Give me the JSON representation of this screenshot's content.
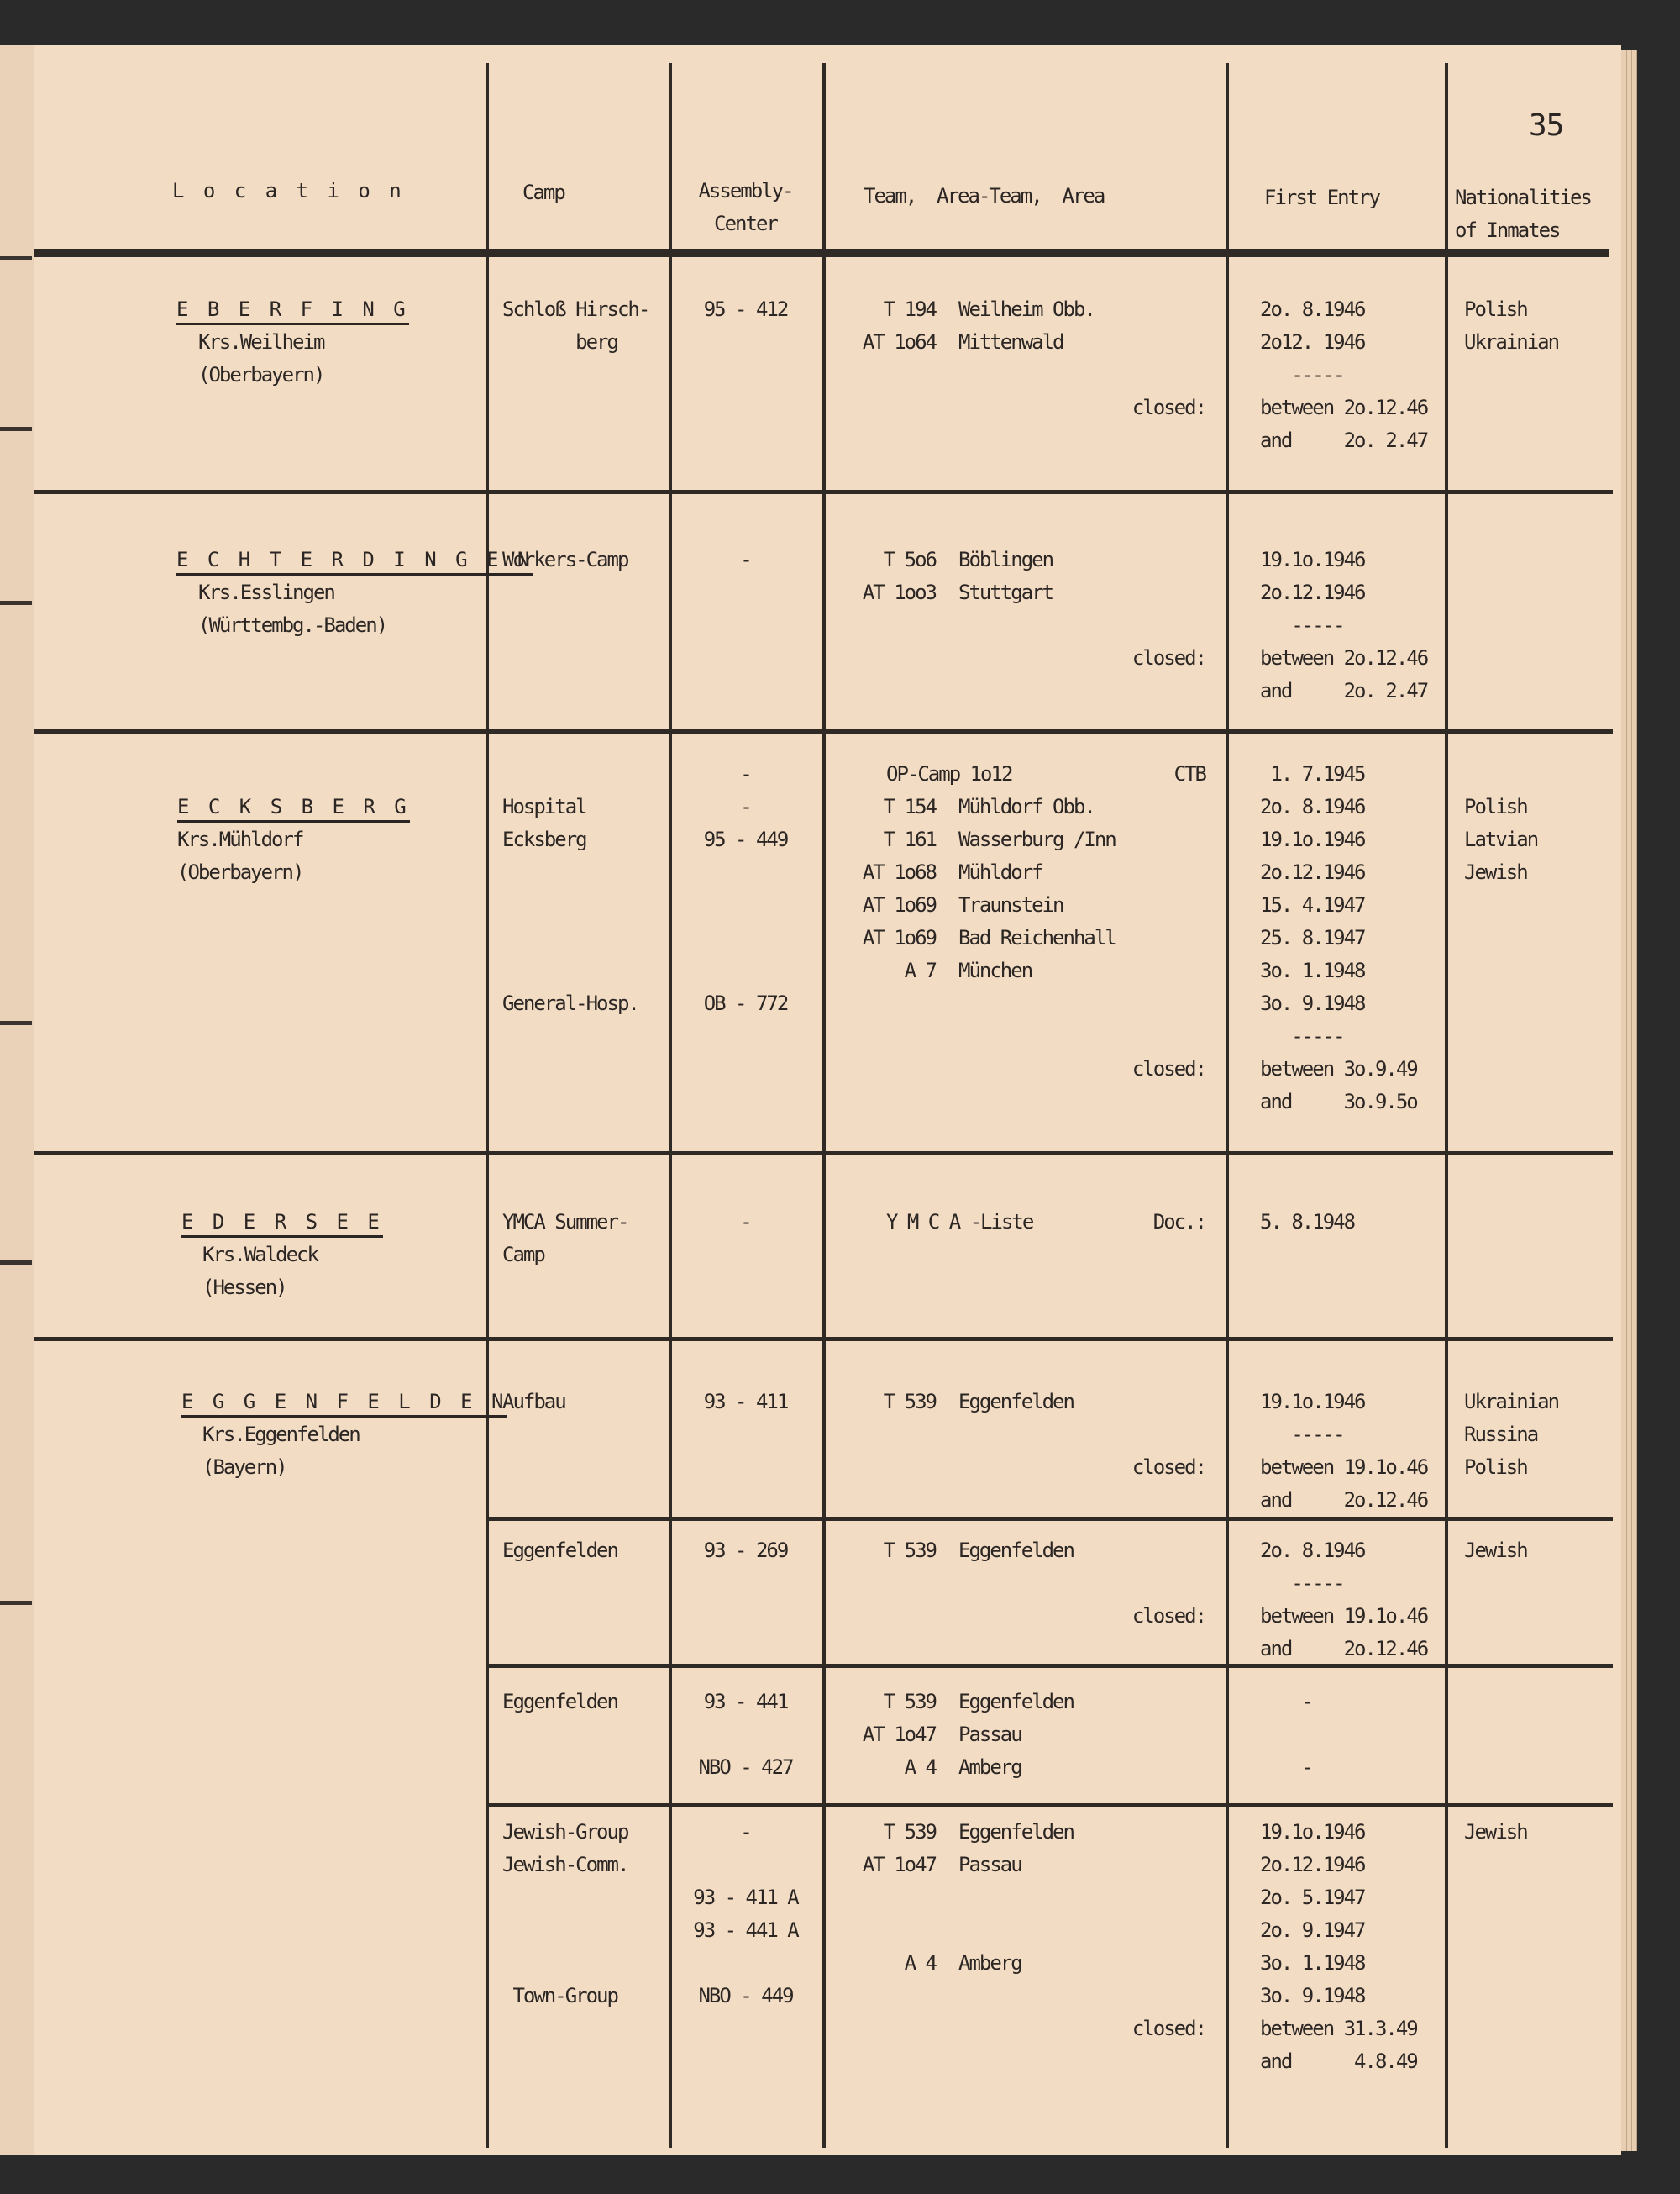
{
  "page_number": "35",
  "header": {
    "location": "L o c a t i o n",
    "camp": "Camp",
    "assembly": [
      "Assembly-",
      "Center"
    ],
    "team": "Team,  Area-Team,  Area",
    "first_entry": "First Entry",
    "nationalities": [
      "Nationalities",
      "of Inmates"
    ]
  },
  "rows": [
    {
      "location": {
        "name": "E B E R F I N G",
        "sub": [
          "Krs.Weilheim",
          "(Oberbayern)"
        ]
      },
      "camps": [
        {
          "camp": [
            "Schloß Hirsch-",
            "       berg"
          ],
          "assembly": [
            "95 - 412"
          ],
          "team": [
            {
              "code": "T 194",
              "place": "Weilheim Obb."
            },
            {
              "code": "AT 1o64",
              "place": "Mittenwald"
            },
            {},
            {
              "note": "closed:"
            }
          ],
          "entry": [
            "2o. 8.1946",
            "2o12. 1946",
            "   -----",
            "between 2o.12.46",
            "and     2o. 2.47"
          ],
          "nationalities": [
            "Polish",
            "Ukrainian"
          ]
        }
      ]
    },
    {
      "location": {
        "name": "E C H T E R D I N G E N",
        "sub": [
          "Krs.Esslingen",
          "(Württembg.-Baden)"
        ]
      },
      "camps": [
        {
          "camp": [
            "Workers-Camp"
          ],
          "assembly": [
            "-"
          ],
          "team": [
            {
              "code": "T 5o6",
              "place": "Böblingen"
            },
            {
              "code": "AT 1oo3",
              "place": "Stuttgart"
            },
            {},
            {
              "note": "closed:"
            }
          ],
          "entry": [
            "19.1o.1946",
            "2o.12.1946",
            "   -----",
            "between 2o.12.46",
            "and     2o. 2.47"
          ],
          "nationalities": []
        }
      ]
    },
    {
      "location": {
        "name": "E C K S B E R G",
        "sub": [
          "Krs.Mühldorf",
          "(Oberbayern)"
        ]
      },
      "camps": [
        {
          "camp": [
            "",
            "Hospital",
            "Ecksberg",
            "",
            "",
            "",
            "",
            "General-Hosp."
          ],
          "assembly": [
            "-",
            "-",
            "95 - 449",
            "",
            "",
            "",
            "",
            "OB - 772"
          ],
          "team": [
            {
              "text": "OP-Camp 1o12",
              "note": "CTB"
            },
            {
              "code": "T 154",
              "place": "Mühldorf Obb."
            },
            {
              "code": "T 161",
              "place": "Wasserburg /Inn"
            },
            {
              "code": "AT 1o68",
              "place": "Mühldorf"
            },
            {
              "code": "AT 1o69",
              "place": "Traunstein"
            },
            {
              "code": "AT 1o69",
              "place": "Bad Reichenhall"
            },
            {
              "code": "A 7",
              "place": "München"
            },
            {},
            {},
            {
              "note": "closed:"
            }
          ],
          "entry": [
            " 1. 7.1945",
            "2o. 8.1946",
            "19.1o.1946",
            "2o.12.1946",
            "15. 4.1947",
            "25. 8.1947",
            "3o. 1.1948",
            "3o. 9.1948",
            "   -----",
            "between 3o.9.49",
            "and     3o.9.5o"
          ],
          "nationalities": [
            "",
            "Polish",
            "Latvian",
            "Jewish"
          ]
        }
      ]
    },
    {
      "location": {
        "name": "E D E R S E E",
        "sub": [
          "Krs.Waldeck",
          "(Hessen)"
        ]
      },
      "camps": [
        {
          "camp": [
            "YMCA Summer-",
            "Camp"
          ],
          "assembly": [
            "-"
          ],
          "team": [
            {
              "text": "Y M C A -Liste",
              "note": "Doc.:"
            }
          ],
          "entry": [
            "5. 8.1948"
          ],
          "nationalities": []
        }
      ]
    },
    {
      "location": {
        "name": "E G G E N F E L D E N",
        "sub": [
          "Krs.Eggenfelden",
          "(Bayern)"
        ]
      },
      "camps": [
        {
          "camp": [
            "Aufbau"
          ],
          "assembly": [
            "93 - 411"
          ],
          "team": [
            {
              "code": "T 539",
              "place": "Eggenfelden"
            },
            {},
            {
              "note": "closed:"
            }
          ],
          "entry": [
            "19.1o.1946",
            "   -----",
            "between 19.1o.46",
            "and     2o.12.46"
          ],
          "nationalities": [
            "Ukrainian",
            "Russina",
            "Polish"
          ]
        },
        {
          "camp": [
            "Eggenfelden"
          ],
          "assembly": [
            "93 - 269"
          ],
          "team": [
            {
              "code": "T 539",
              "place": "Eggenfelden"
            },
            {},
            {
              "note": "closed:"
            }
          ],
          "entry": [
            "2o. 8.1946",
            "   -----",
            "between 19.1o.46",
            "and     2o.12.46"
          ],
          "nationalities": [
            "Jewish"
          ]
        },
        {
          "camp": [
            "Eggenfelden"
          ],
          "assembly": [
            "93 - 441",
            "",
            "NBO - 427"
          ],
          "team": [
            {
              "code": "T 539",
              "place": "Eggenfelden"
            },
            {
              "code": "AT 1o47",
              "place": "Passau"
            },
            {
              "code": "A 4",
              "place": "Amberg"
            }
          ],
          "entry": [
            "    -",
            "",
            "    -"
          ],
          "nationalities": []
        },
        {
          "camp": [
            "Jewish-Group",
            "Jewish-Comm.",
            "",
            "",
            "",
            " Town-Group"
          ],
          "assembly": [
            "-",
            "",
            "93 - 411 A",
            "93 - 441 A",
            "",
            "NBO - 449"
          ],
          "team": [
            {
              "code": "T 539",
              "place": "Eggenfelden"
            },
            {
              "code": "AT 1o47",
              "place": "Passau"
            },
            {},
            {},
            {
              "code": "A 4",
              "place": "Amberg"
            },
            {},
            {
              "note": "closed:"
            }
          ],
          "entry": [
            "19.1o.1946",
            "2o.12.1946",
            "2o. 5.1947",
            "2o. 9.1947",
            "3o. 1.1948",
            "3o. 9.1948",
            "between 31.3.49",
            "and      4.8.49"
          ],
          "nationalities": [
            "Jewish"
          ]
        }
      ]
    }
  ]
}
